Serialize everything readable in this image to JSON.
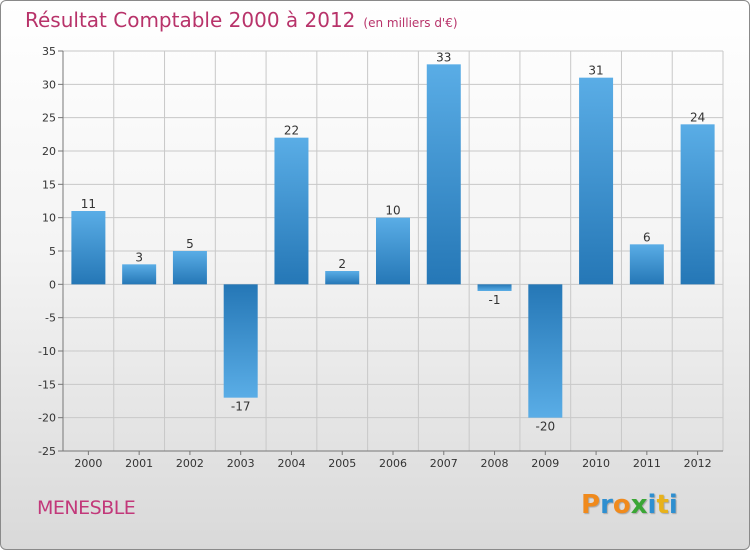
{
  "chart_data": {
    "type": "bar",
    "title": "Résultat Comptable 2000 à 2012",
    "subtitle": "(en milliers d'€)",
    "categories": [
      "2000",
      "2001",
      "2002",
      "2003",
      "2004",
      "2005",
      "2006",
      "2007",
      "2008",
      "2009",
      "2010",
      "2011",
      "2012"
    ],
    "values": [
      11,
      3,
      5,
      -17,
      22,
      2,
      10,
      33,
      -1,
      -20,
      31,
      6,
      24
    ],
    "value_labels": [
      "11",
      "3",
      "5",
      "-17",
      "22",
      "2",
      "10",
      "33",
      "-1",
      "-20",
      "31",
      "6",
      "24"
    ],
    "ylim": [
      -25,
      35
    ],
    "yticks": [
      35,
      30,
      25,
      20,
      15,
      10,
      5,
      0,
      -5,
      -10,
      -15,
      -20,
      -25
    ],
    "ytick_labels": [
      "35",
      "30",
      "25",
      "20",
      "15",
      "10",
      "5",
      "0",
      "-5",
      "-10",
      "-15",
      "-20",
      "-25"
    ],
    "grid": true,
    "xlabel": "",
    "ylabel": ""
  },
  "footer": {
    "commune": "MENESBLE",
    "brand_letters": [
      "P",
      "r",
      "o",
      "x",
      "i",
      "t",
      "i"
    ]
  },
  "colors": {
    "bar_light": "#5aade6",
    "bar_dark": "#2577b6",
    "title": "#b8336a",
    "grid": "#c8c8c8",
    "brand": [
      "#f08a1c",
      "#2e8fd0",
      "#f08a1c",
      "#3aa635",
      "#2e8fd0",
      "#e8b21a",
      "#2e8fd0"
    ]
  }
}
